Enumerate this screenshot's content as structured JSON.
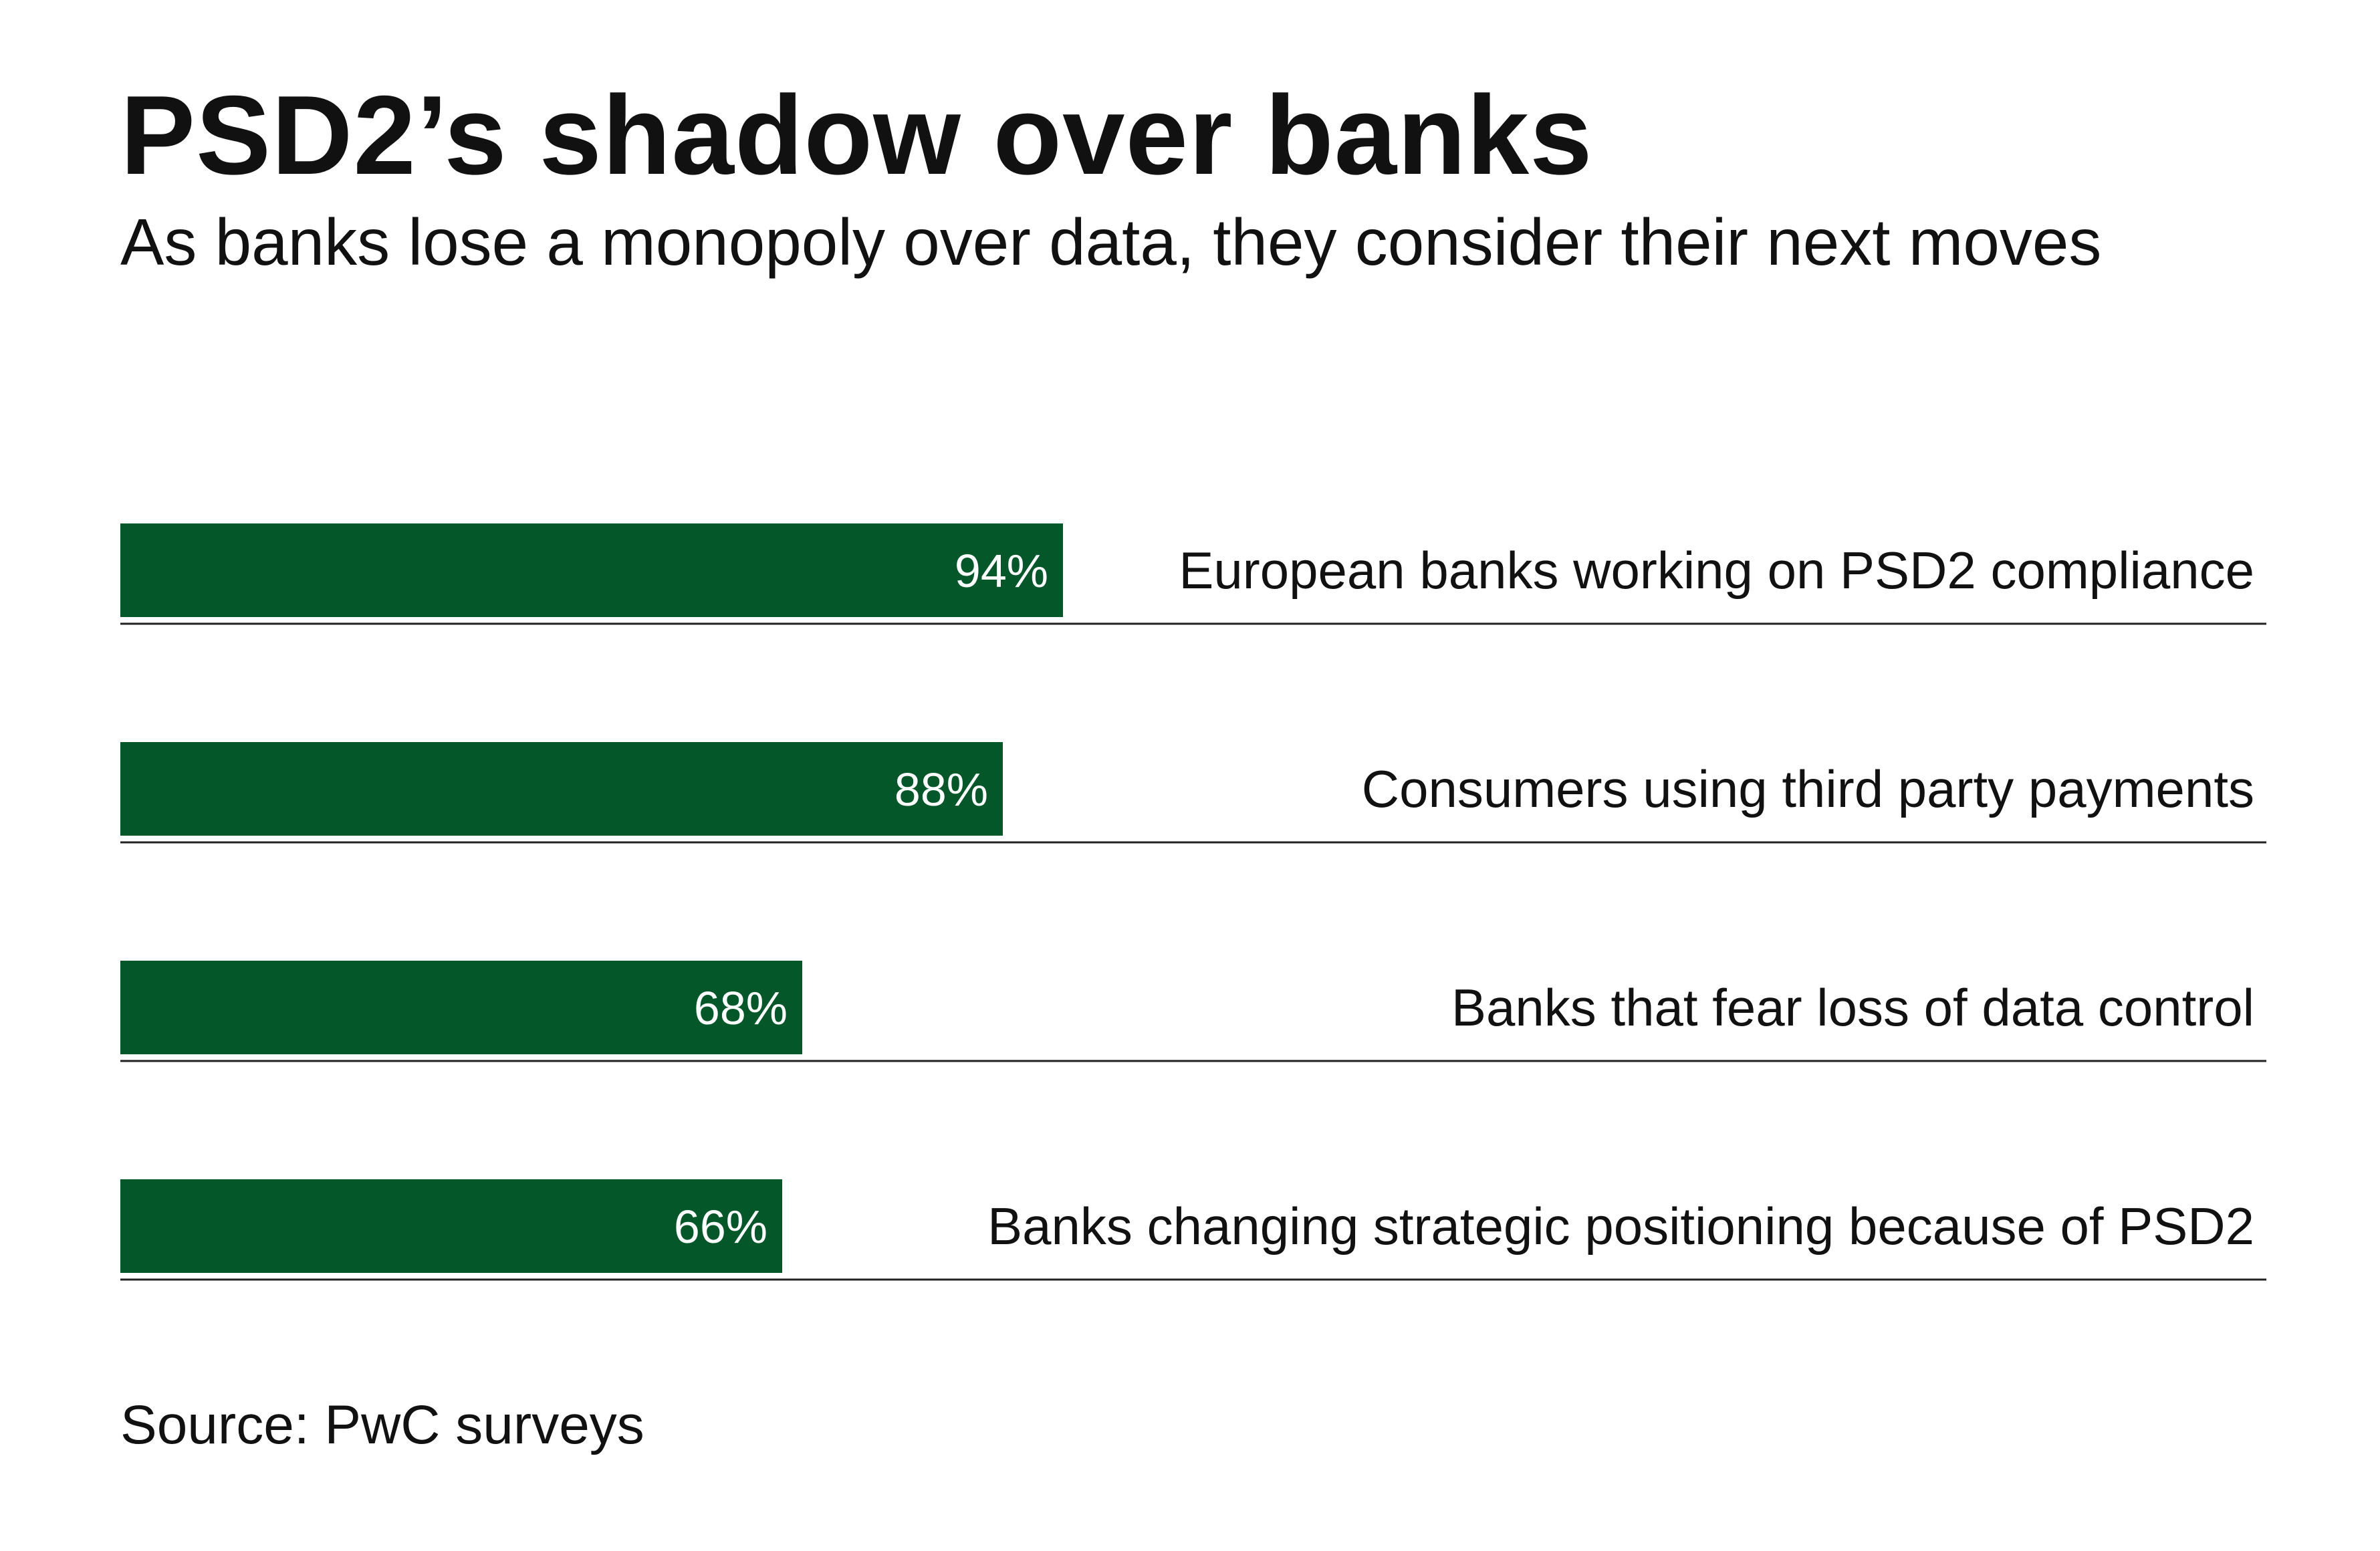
{
  "title": "PSD2’s shadow over banks",
  "subtitle": "As banks lose a monopoly over data, they consider their next moves",
  "source": "Source: PwC surveys",
  "colors": {
    "bar": "#045728",
    "rule": "#222222",
    "text": "#111111",
    "background": "#ffffff"
  },
  "chart_data": {
    "type": "bar",
    "orientation": "horizontal",
    "categories": [
      "European banks working on PSD2 compliance",
      "Consumers using third party payments",
      "Banks that fear loss of data control",
      "Banks changing strategic positioning because of PSD2"
    ],
    "values": [
      94,
      88,
      68,
      66
    ],
    "value_labels": [
      "94%",
      "88%",
      "68%",
      "66%"
    ],
    "unit": "%",
    "xlim": [
      0,
      100
    ],
    "grid": false,
    "legend": "none"
  }
}
